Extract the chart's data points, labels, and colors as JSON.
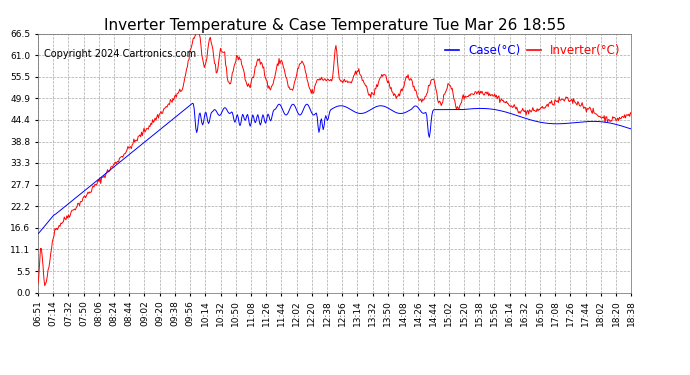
{
  "title": "Inverter Temperature & Case Temperature Tue Mar 26 18:55",
  "copyright": "Copyright 2024 Cartronics.com",
  "legend_case": "Case(°C)",
  "legend_inverter": "Inverter(°C)",
  "case_color": "blue",
  "inverter_color": "red",
  "background_color": "#ffffff",
  "grid_color": "#aaaaaa",
  "ylim": [
    0.0,
    66.5
  ],
  "yticks": [
    0.0,
    5.5,
    11.1,
    16.6,
    22.2,
    27.7,
    33.3,
    38.8,
    44.4,
    49.9,
    55.5,
    61.0,
    66.5
  ],
  "xtick_labels": [
    "06:51",
    "07:14",
    "07:32",
    "07:50",
    "08:06",
    "08:24",
    "08:44",
    "09:02",
    "09:20",
    "09:38",
    "09:56",
    "10:14",
    "10:32",
    "10:50",
    "11:08",
    "11:26",
    "11:44",
    "12:02",
    "12:20",
    "12:38",
    "12:56",
    "13:14",
    "13:32",
    "13:50",
    "14:08",
    "14:26",
    "14:44",
    "15:02",
    "15:20",
    "15:38",
    "15:56",
    "16:14",
    "16:32",
    "16:50",
    "17:08",
    "17:26",
    "17:44",
    "18:02",
    "18:20",
    "18:38"
  ],
  "title_fontsize": 11,
  "copyright_fontsize": 7,
  "legend_fontsize": 8.5,
  "tick_fontsize": 6.5,
  "figwidth": 6.9,
  "figheight": 3.75,
  "dpi": 100
}
